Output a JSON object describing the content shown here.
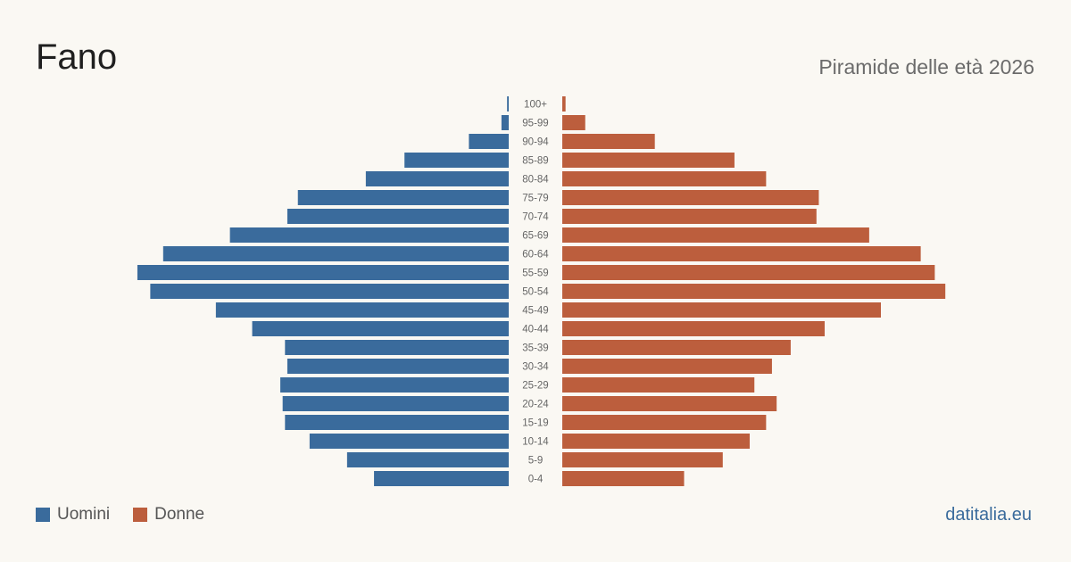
{
  "header": {
    "title": "Fano",
    "subtitle": "Piramide delle età 2026"
  },
  "legend": {
    "male_label": "Uomini",
    "female_label": "Donne"
  },
  "footer": {
    "source": "datitalia.eu"
  },
  "colors": {
    "male": "#3a6b9c",
    "female": "#bc5e3d",
    "tick_text": "#666666",
    "background": "#faf8f3"
  },
  "chart_data": {
    "type": "bar",
    "orientation": "horizontal",
    "subtype": "population-pyramid",
    "title": "Piramide delle età 2026",
    "categories": [
      "100+",
      "95-99",
      "90-94",
      "85-89",
      "80-84",
      "75-79",
      "70-74",
      "65-69",
      "60-64",
      "55-59",
      "50-54",
      "45-49",
      "40-44",
      "35-39",
      "30-34",
      "25-29",
      "20-24",
      "15-19",
      "10-14",
      "5-9",
      "0-4"
    ],
    "series": [
      {
        "name": "Uomini",
        "values": [
          7,
          31,
          170,
          445,
          610,
          900,
          945,
          1190,
          1475,
          1585,
          1530,
          1250,
          1095,
          955,
          945,
          975,
          965,
          955,
          850,
          690,
          575
        ]
      },
      {
        "name": "Donne",
        "values": [
          14,
          98,
          395,
          735,
          870,
          1095,
          1085,
          1310,
          1530,
          1590,
          1635,
          1360,
          1120,
          975,
          895,
          820,
          915,
          870,
          800,
          685,
          520
        ]
      }
    ]
  }
}
